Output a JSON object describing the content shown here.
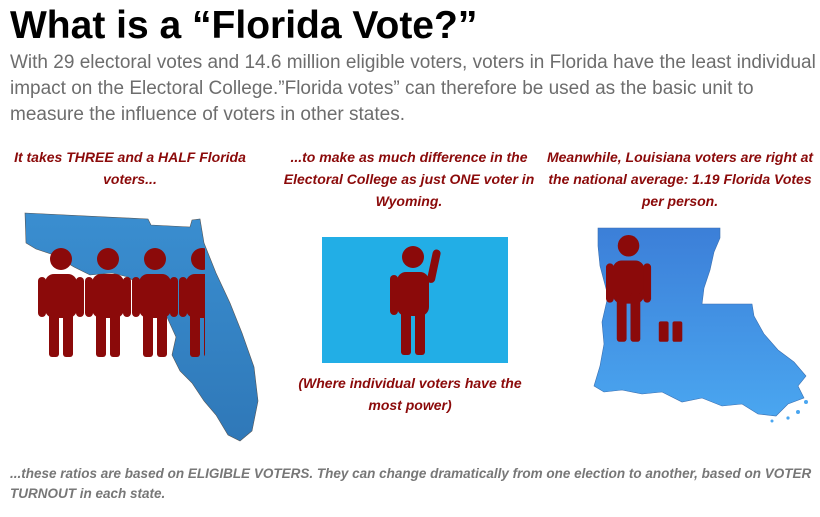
{
  "header": {
    "title": "What is a “Florida Vote?”",
    "intro": "With 29 electoral votes and 14.6 million eligible voters, voters in Florida have the least individual impact on the Electoral College.”Florida votes” can therefore be used as the basic unit to measure the influence of voters in other states."
  },
  "panels": {
    "florida": {
      "caption": "It takes THREE and a HALF Florida voters...",
      "voters": 3.5,
      "map_color": "#3a87c8"
    },
    "wyoming": {
      "caption": "...to make as much difference in the Electoral College as just ONE voter in Wyoming.",
      "note": "(Where individual voters have the most power)",
      "voters": 1,
      "map_color": "#22aee6"
    },
    "louisiana": {
      "caption": "Meanwhile, Louisiana voters are right at the national average: 1.19 Florida Votes per person.",
      "voters": 1.19,
      "map_color": "#3c90e6"
    }
  },
  "footnote": "...these ratios are based on ELIGIBLE VOTERS. They can change dramatically from one election to another, based on VOTER TURNOUT in each state.",
  "colors": {
    "voter": "#8b0a0a",
    "intro_text": "#6d6d6d",
    "caption_text": "#8b0a0a",
    "footnote_text": "#777777"
  },
  "icons": {
    "voter": "person-icon",
    "waving_voter": "waving-person-icon"
  }
}
